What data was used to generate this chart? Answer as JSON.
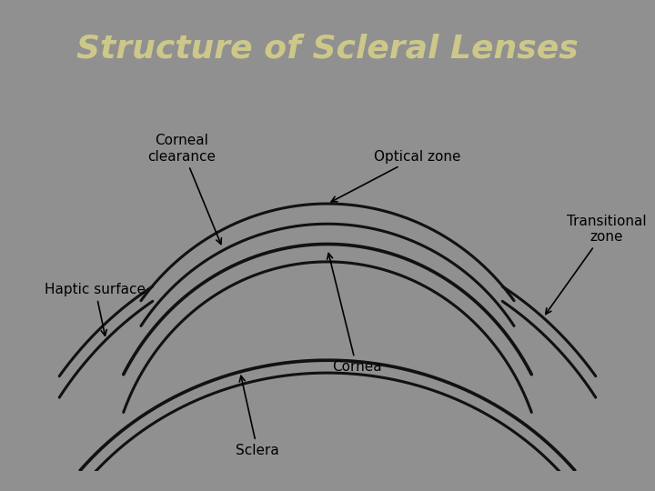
{
  "title": "Structure of Scleral Lenses",
  "title_color": "#cdc88a",
  "title_fontsize": 26,
  "bg_color_top": "#909090",
  "bg_color_bottom": "#787878",
  "panel_bg": "#ffffff",
  "labels": {
    "corneal_clearance": "Corneal\nclearance",
    "optical_zone": "Optical zone",
    "haptic_surface": "Haptic surface",
    "transitional_zone": "Transitional\nzone",
    "cornea": "Cornea",
    "sclera": "Sclera"
  },
  "label_fontsize": 11,
  "curve_color": "#111111",
  "curve_linewidth": 2.2
}
